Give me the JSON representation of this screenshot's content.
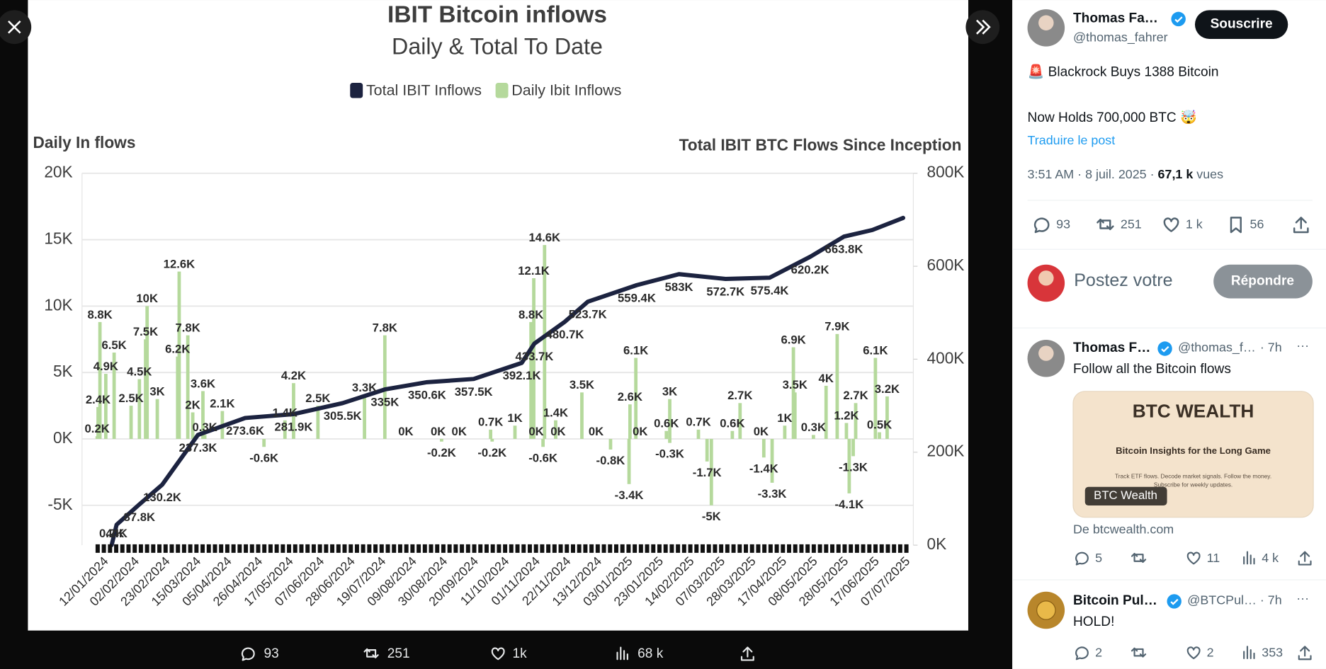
{
  "chart_data": {
    "type": "combo",
    "title": "IBIT Bitcoin inflows",
    "subtitle": "Daily & Total To Date",
    "y_label": "Daily In flows",
    "y2_label": "Total IBIT BTC Flows Since Inception",
    "categories": [
      "12/01/2024",
      "02/02/2024",
      "23/02/2024",
      "15/03/2024",
      "05/04/2024",
      "26/04/2024",
      "17/05/2024",
      "07/06/2024",
      "28/06/2024",
      "19/07/2024",
      "09/08/2024",
      "30/08/2024",
      "20/09/2024",
      "11/10/2024",
      "01/11/2024",
      "22/11/2024",
      "13/12/2024",
      "03/01/2025",
      "23/01/2025",
      "14/02/2025",
      "07/03/2025",
      "28/03/2025",
      "17/04/2025",
      "08/05/2025",
      "28/05/2025",
      "17/06/2025",
      "07/07/2025"
    ],
    "ylim": [
      -8000,
      20000
    ],
    "yticks": [
      {
        "value": -5000,
        "label": "-5K"
      },
      {
        "value": 0,
        "label": "0K"
      },
      {
        "value": 5000,
        "label": "5K"
      },
      {
        "value": 10000,
        "label": "10K"
      },
      {
        "value": 15000,
        "label": "15K"
      },
      {
        "value": 20000,
        "label": "20K"
      }
    ],
    "y2lim": [
      0,
      800000
    ],
    "y2ticks": [
      {
        "value": 0,
        "label": "0K"
      },
      {
        "value": 200000,
        "label": "200K"
      },
      {
        "value": 400000,
        "label": "400K"
      },
      {
        "value": 600000,
        "label": "600K"
      },
      {
        "value": 800000,
        "label": "800K"
      }
    ],
    "grid": true,
    "legend": "top",
    "series": [
      {
        "name": "Total IBIT Inflows",
        "type": "line",
        "axis": "y2",
        "color": "#1c2340",
        "x": [
          0.33,
          0.49,
          1.23,
          1.97,
          3.13,
          4.66,
          6.23,
          7.82,
          9.19,
          10.56,
          12.07,
          13.63,
          14.04,
          15.03,
          15.77,
          17.36,
          18.73,
          20.24,
          21.67,
          22.98,
          24.08,
          25,
          26
        ],
        "values": [
          200,
          44000,
          87800,
          130200,
          237300,
          273600,
          281900,
          305500,
          335000,
          350600,
          357500,
          392100,
          433700,
          480700,
          523700,
          559400,
          583000,
          572700,
          575400,
          620200,
          663800,
          678000,
          704000
        ],
        "value_labels": [
          "0.2K",
          "44K",
          "87.8K",
          "130.2K",
          "237.3K",
          "273.6K",
          "281.9K",
          "305.5K",
          "335K",
          "350.6K",
          "357.5K",
          "392.1K",
          "433.7K",
          "480.7K",
          "523.7K",
          "559.4K",
          "583K",
          "572.7K",
          "575.4K",
          "620.2K",
          "663.8K",
          null,
          null
        ]
      },
      {
        "name": "Daily Ibit Inflows",
        "type": "bar",
        "color": "#b5d99c",
        "x": [
          -0.05,
          0.41,
          0.14,
          -0.11,
          -0.14,
          0.96,
          1.23,
          1.43,
          1.48,
          1.81,
          2.52,
          2.8,
          2.47,
          2.96,
          3.29,
          3.35,
          3.92,
          5.27,
          6.23,
          5.95,
          7.02,
          8.53,
          9.19,
          9.87,
          10.92,
          11.6,
          11.03,
          12.67,
          12.62,
          13.41,
          14.02,
          13.93,
          14.37,
          14.1,
          14.81,
          14.32,
          14.73,
          15.58,
          16.04,
          16.51,
          17.11,
          17.33,
          17.14,
          17.47,
          18.43,
          18.43,
          18.32,
          19.36,
          19.64,
          19.78,
          20.46,
          20.71,
          21.39,
          21.48,
          21.75,
          22.16,
          22.49,
          22.44,
          23.09,
          23.5,
          23.86,
          24.46,
          24.16,
          24.38,
          24.25,
          25.1,
          25.48,
          25.23
        ],
        "values": [
          8800,
          6500,
          4900,
          2400,
          200,
          2500,
          4500,
          7500,
          10000,
          3000,
          12600,
          7800,
          6200,
          2000,
          3600,
          300,
          2100,
          -600,
          4200,
          1400,
          2500,
          3300,
          7800,
          0,
          0,
          0,
          -200,
          -200,
          700,
          1000,
          12100,
          8800,
          14600,
          0,
          0,
          -600,
          1400,
          3500,
          0,
          -800,
          -3400,
          6100,
          2600,
          0,
          -300,
          3000,
          600,
          700,
          -1700,
          -5000,
          600,
          2700,
          0,
          -1400,
          -3300,
          1000,
          3500,
          6900,
          300,
          4000,
          7900,
          2700,
          1200,
          -1300,
          -4100,
          6100,
          3200,
          500
        ],
        "value_labels": [
          "8.8K",
          "6.5K",
          "4.9K",
          "2.4K",
          "0.2K",
          "2.5K",
          "4.5K",
          "7.5K",
          "10K",
          "3K",
          "12.6K",
          "7.8K",
          "6.2K",
          "2K",
          "3.6K",
          "0.3K",
          "2.1K",
          "-0.6K",
          "4.2K",
          "1.4K",
          "2.5K",
          "3.3K",
          "7.8K",
          "0K",
          "0K",
          "0K",
          "-0.2K",
          "-0.2K",
          "0.7K",
          "1K",
          "12.1K",
          "8.8K",
          "14.6K",
          "0K",
          "0K",
          "-0.6K",
          "1.4K",
          "3.5K",
          "0K",
          "-0.8K",
          "-3.4K",
          "6.1K",
          "2.6K",
          "0K",
          "-0.3K",
          "3K",
          "0.6K",
          "0.7K",
          "-1.7K",
          "-5K",
          "0.6K",
          "2.7K",
          "0K",
          "-1.4K",
          "-3.3K",
          "1K",
          "3.5K",
          "6.9K",
          "0.3K",
          "4K",
          "7.9K",
          "2.7K",
          "1.2K",
          "-1.3K",
          "-4.1K",
          "6.1K",
          "3.2K",
          "0.5K"
        ]
      }
    ]
  },
  "modal_actions": {
    "replies": "93",
    "reposts": "251",
    "likes": "1k",
    "views": "68 k"
  },
  "post": {
    "author": {
      "name": "Thomas Fa…",
      "handle": "@thomas_fahrer"
    },
    "subscribe": "Souscrire",
    "text": [
      "🚨 Blackrock Buys 1388 Bitcoin",
      "Now Holds 700,000 BTC 🤯"
    ],
    "translate": "Traduire le post",
    "timestamp": "3:51 AM · 8 juil. 2025 ·",
    "views": "67,1 k",
    "views_label": "vues",
    "actions": {
      "replies": "93",
      "reposts": "251",
      "likes": "1 k",
      "bookmarks": "56"
    }
  },
  "reply_box": {
    "placeholder": "Postez votre",
    "button": "Répondre"
  },
  "replies": [
    {
      "name": "Thomas F…",
      "handle": "@thomas_f…",
      "time": "· 7h",
      "text": "Follow all the Bitcoin flows",
      "card": {
        "title": "BTC WEALTH",
        "subtitle": "Bitcoin Insights for the Long Game",
        "blurb": [
          "Track ETF flows. Decode market signals. Follow the money.",
          "Subscribe for weekly updates."
        ],
        "label": "BTC Wealth",
        "source": "De btcwealth.com"
      },
      "actions": {
        "replies": "5",
        "likes": "11",
        "views": "4 k"
      }
    },
    {
      "name": "Bitcoin Pul…",
      "handle": "@BTCPul…",
      "time": "· 7h",
      "text": "HOLD!",
      "actions": {
        "replies": "2",
        "likes": "2",
        "views": "353"
      }
    }
  ]
}
